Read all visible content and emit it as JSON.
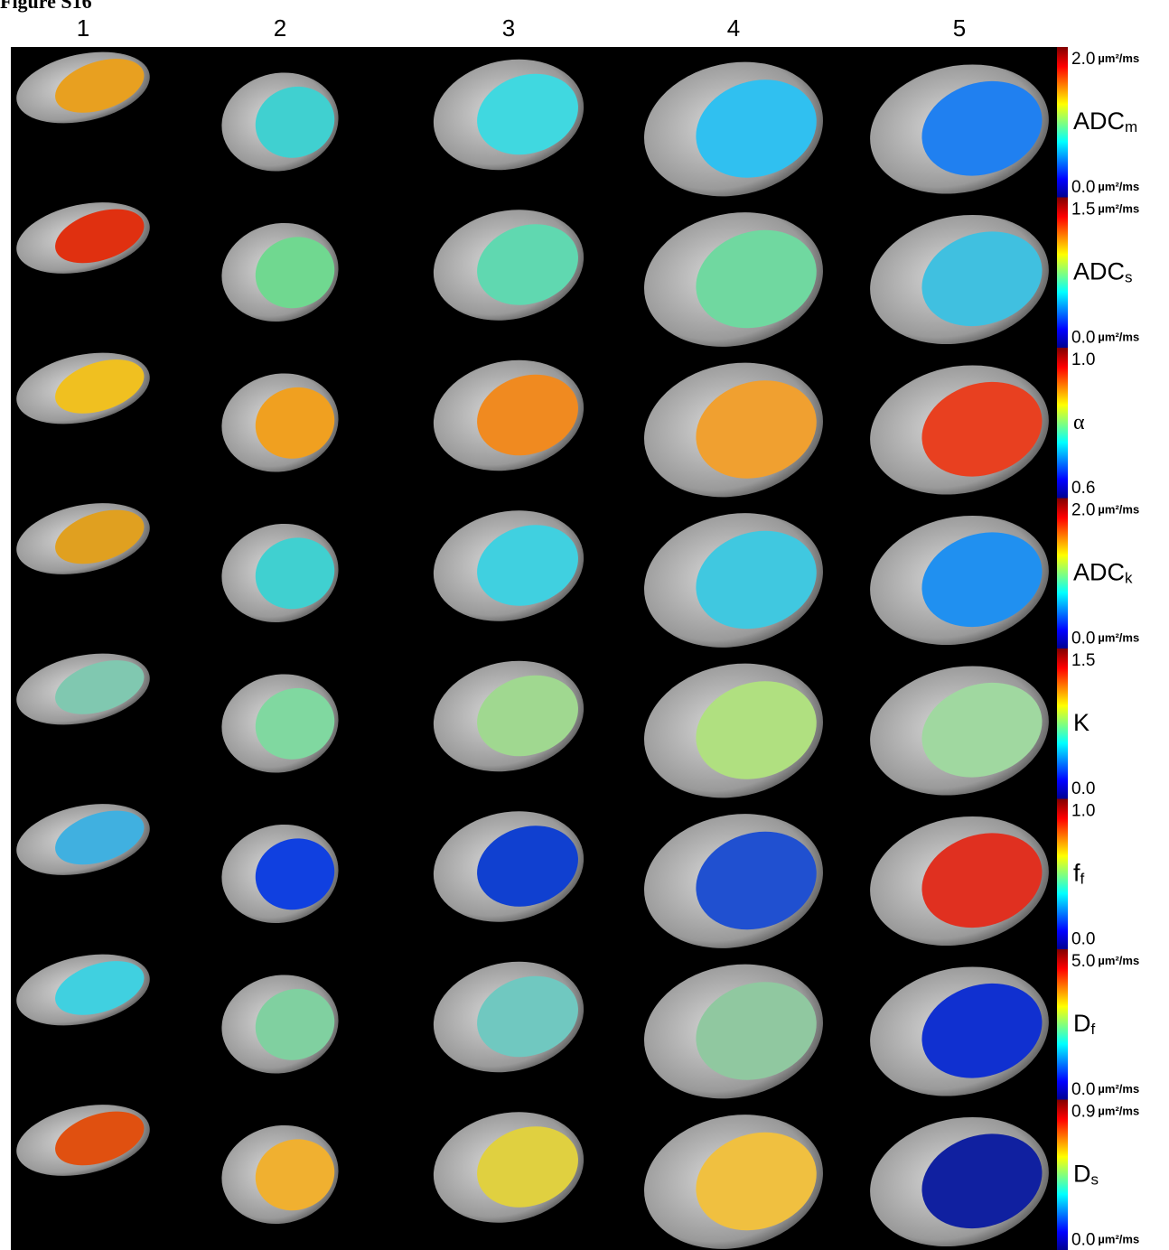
{
  "header": {
    "title": "Figure S16"
  },
  "columns": [
    "1",
    "2",
    "3",
    "4",
    "5"
  ],
  "rows": [
    {
      "name": "ADC",
      "sub": "m",
      "top": "2.0",
      "top_unit": "µm²/ms",
      "bottom": "0.0",
      "bottom_unit": "µm²/ms"
    },
    {
      "name": "ADC",
      "sub": "s",
      "top": "1.5",
      "top_unit": "µm²/ms",
      "bottom": "0.0",
      "bottom_unit": "µm²/ms"
    },
    {
      "name": "α",
      "top": "1.0",
      "bottom": "0.6"
    },
    {
      "name": "ADC",
      "sub": "k",
      "top": "2.0",
      "top_unit": "µm²/ms",
      "bottom": "0.0",
      "bottom_unit": "µm²/ms"
    },
    {
      "name": "K",
      "top": "1.5",
      "bottom": "0.0"
    },
    {
      "name": "f",
      "sub": "f",
      "top": "1.0",
      "bottom": "0.0"
    },
    {
      "name": "D",
      "sub": "f",
      "top": "5.0",
      "top_unit": "µm²/ms",
      "bottom": "0.0",
      "bottom_unit": "µm²/ms"
    },
    {
      "name": "D",
      "sub": "s",
      "top": "0.9",
      "top_unit": "µm²/ms",
      "bottom": "0.0",
      "bottom_unit": "µm²/ms"
    }
  ]
}
